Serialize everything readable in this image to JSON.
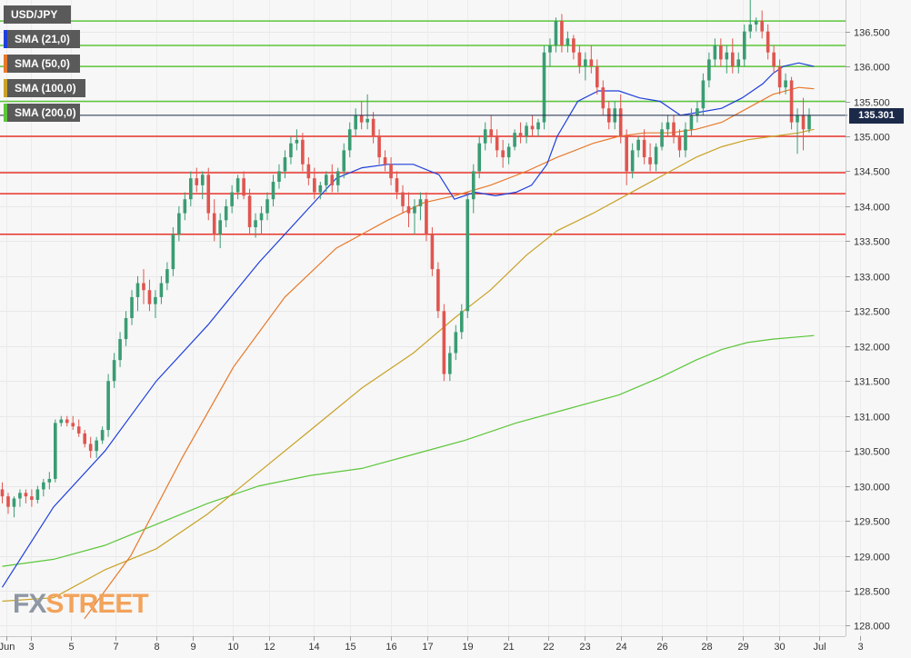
{
  "symbol": "USD/JPY",
  "legend": [
    {
      "label": "SMA (21,0)",
      "color": "#1f3fdc"
    },
    {
      "label": "SMA (50,0)",
      "color": "#e8792b"
    },
    {
      "label": "SMA (100,0)",
      "color": "#c9a227"
    },
    {
      "label": "SMA (200,0)",
      "color": "#5cc63a"
    }
  ],
  "current_price": "135.301",
  "logo": {
    "fx": "FX",
    "street": "STREET"
  },
  "colors": {
    "bull": "#3a9c73",
    "bear": "#e0554f",
    "support": "#e8342a",
    "resistance": "#5cc63a",
    "price_line": "#1c2a4a"
  },
  "chart_data": {
    "type": "candlestick",
    "ylim": [
      127.85,
      136.95
    ],
    "y_ticks": [
      "128.000",
      "128.500",
      "129.000",
      "129.500",
      "130.000",
      "130.500",
      "131.000",
      "131.500",
      "132.000",
      "132.500",
      "133.000",
      "133.500",
      "134.000",
      "134.500",
      "135.000",
      "135.500",
      "136.000",
      "136.500"
    ],
    "x_ticks": [
      {
        "label": "Jun",
        "index": 1
      },
      {
        "label": "3",
        "index": 7
      },
      {
        "label": "5",
        "index": 17
      },
      {
        "label": "7",
        "index": 28
      },
      {
        "label": "8",
        "index": 38
      },
      {
        "label": "9",
        "index": 47
      },
      {
        "label": "10",
        "index": 57
      },
      {
        "label": "12",
        "index": 66
      },
      {
        "label": "14",
        "index": 77
      },
      {
        "label": "15",
        "index": 86
      },
      {
        "label": "16",
        "index": 96
      },
      {
        "label": "17",
        "index": 105
      },
      {
        "label": "19",
        "index": 115
      },
      {
        "label": "21",
        "index": 125
      },
      {
        "label": "22",
        "index": 135
      },
      {
        "label": "23",
        "index": 144
      },
      {
        "label": "24",
        "index": 153
      },
      {
        "label": "26",
        "index": 163
      },
      {
        "label": "28",
        "index": 174
      },
      {
        "label": "29",
        "index": 183
      },
      {
        "label": "30",
        "index": 192
      },
      {
        "label": "Jul",
        "index": 202
      },
      {
        "label": "3",
        "index": 212
      }
    ],
    "horizontal_levels": {
      "resistance": [
        136.65,
        136.3,
        136.0,
        135.5
      ],
      "support": [
        135.0,
        134.48,
        134.18,
        133.6
      ]
    },
    "candles": [
      [
        129.95,
        130.05,
        129.75,
        129.85
      ],
      [
        129.85,
        129.9,
        129.6,
        129.7
      ],
      [
        129.7,
        129.85,
        129.55,
        129.82
      ],
      [
        129.82,
        129.95,
        129.7,
        129.9
      ],
      [
        129.9,
        129.95,
        129.75,
        129.85
      ],
      [
        129.85,
        129.95,
        129.7,
        129.8
      ],
      [
        129.8,
        130.0,
        129.75,
        129.95
      ],
      [
        129.95,
        130.1,
        129.85,
        130.05
      ],
      [
        130.05,
        130.2,
        129.95,
        130.1
      ],
      [
        130.1,
        130.95,
        130.05,
        130.9
      ],
      [
        130.9,
        131.0,
        130.85,
        130.95
      ],
      [
        130.95,
        131.0,
        130.85,
        130.9
      ],
      [
        130.9,
        131.0,
        130.8,
        130.85
      ],
      [
        130.85,
        130.95,
        130.7,
        130.75
      ],
      [
        130.75,
        130.8,
        130.55,
        130.6
      ],
      [
        130.6,
        130.7,
        130.4,
        130.5
      ],
      [
        130.5,
        130.7,
        130.4,
        130.65
      ],
      [
        130.65,
        130.85,
        130.6,
        130.8
      ],
      [
        130.8,
        131.6,
        130.7,
        131.5
      ],
      [
        131.5,
        131.9,
        131.4,
        131.8
      ],
      [
        131.8,
        132.2,
        131.7,
        132.1
      ],
      [
        132.1,
        132.5,
        132.0,
        132.4
      ],
      [
        132.4,
        132.8,
        132.3,
        132.7
      ],
      [
        132.7,
        133.0,
        132.5,
        132.9
      ],
      [
        132.9,
        133.1,
        132.6,
        132.8
      ],
      [
        132.8,
        132.95,
        132.5,
        132.6
      ],
      [
        132.6,
        132.8,
        132.4,
        132.7
      ],
      [
        132.7,
        133.0,
        132.6,
        132.9
      ],
      [
        132.9,
        133.2,
        132.8,
        133.1
      ],
      [
        133.1,
        133.7,
        133.0,
        133.6
      ],
      [
        133.6,
        134.0,
        133.5,
        133.9
      ],
      [
        133.9,
        134.2,
        133.8,
        134.1
      ],
      [
        134.1,
        134.5,
        134.0,
        134.4
      ],
      [
        134.4,
        134.55,
        134.2,
        134.3
      ],
      [
        134.3,
        134.5,
        134.1,
        134.45
      ],
      [
        134.45,
        134.55,
        133.8,
        133.9
      ],
      [
        133.9,
        134.1,
        133.5,
        133.6
      ],
      [
        133.6,
        133.9,
        133.4,
        133.8
      ],
      [
        133.8,
        134.1,
        133.7,
        134.0
      ],
      [
        134.0,
        134.3,
        133.9,
        134.2
      ],
      [
        134.2,
        134.45,
        134.1,
        134.4
      ],
      [
        134.4,
        134.5,
        134.1,
        134.15
      ],
      [
        134.15,
        134.25,
        133.6,
        133.7
      ],
      [
        133.7,
        133.9,
        133.55,
        133.8
      ],
      [
        133.8,
        134.0,
        133.6,
        133.9
      ],
      [
        133.9,
        134.2,
        133.8,
        134.1
      ],
      [
        134.1,
        134.45,
        134.0,
        134.35
      ],
      [
        134.35,
        134.6,
        134.25,
        134.5
      ],
      [
        134.5,
        134.8,
        134.4,
        134.7
      ],
      [
        134.7,
        135.0,
        134.6,
        134.9
      ],
      [
        134.9,
        135.1,
        134.8,
        134.95
      ],
      [
        134.95,
        135.05,
        134.5,
        134.6
      ],
      [
        134.6,
        134.7,
        134.3,
        134.4
      ],
      [
        134.4,
        134.55,
        134.1,
        134.2
      ],
      [
        134.2,
        134.35,
        134.1,
        134.3
      ],
      [
        134.3,
        134.5,
        134.2,
        134.45
      ],
      [
        134.45,
        134.6,
        134.2,
        134.3
      ],
      [
        134.3,
        134.55,
        134.2,
        134.5
      ],
      [
        134.5,
        134.9,
        134.4,
        134.8
      ],
      [
        134.8,
        135.2,
        134.7,
        135.1
      ],
      [
        135.1,
        135.4,
        135.0,
        135.3
      ],
      [
        135.3,
        135.5,
        135.1,
        135.2
      ],
      [
        135.2,
        135.6,
        135.1,
        135.25
      ],
      [
        135.25,
        135.35,
        134.9,
        135.0
      ],
      [
        135.0,
        135.1,
        134.6,
        134.7
      ],
      [
        134.7,
        134.8,
        134.5,
        134.6
      ],
      [
        134.6,
        134.7,
        134.3,
        134.4
      ],
      [
        134.4,
        134.5,
        134.1,
        134.2
      ],
      [
        134.2,
        134.3,
        133.9,
        134.0
      ],
      [
        134.0,
        134.2,
        133.7,
        133.9
      ],
      [
        133.9,
        134.1,
        133.6,
        134.0
      ],
      [
        134.0,
        134.2,
        133.8,
        134.1
      ],
      [
        134.1,
        134.2,
        133.5,
        133.6
      ],
      [
        133.6,
        133.7,
        133.0,
        133.1
      ],
      [
        133.1,
        133.2,
        132.4,
        132.5
      ],
      [
        132.5,
        132.6,
        131.5,
        131.6
      ],
      [
        131.6,
        132.0,
        131.5,
        131.9
      ],
      [
        131.9,
        132.3,
        131.8,
        132.2
      ],
      [
        132.2,
        132.6,
        132.1,
        132.5
      ],
      [
        132.5,
        134.2,
        132.4,
        134.1
      ],
      [
        134.1,
        134.6,
        133.9,
        134.5
      ],
      [
        134.5,
        135.0,
        134.4,
        134.9
      ],
      [
        134.9,
        135.2,
        134.8,
        135.1
      ],
      [
        135.1,
        135.3,
        134.9,
        135.0
      ],
      [
        135.0,
        135.1,
        134.7,
        134.8
      ],
      [
        134.8,
        134.95,
        134.55,
        134.7
      ],
      [
        134.7,
        134.9,
        134.6,
        134.85
      ],
      [
        134.85,
        135.1,
        134.8,
        135.05
      ],
      [
        135.05,
        135.2,
        134.9,
        135.0
      ],
      [
        135.0,
        135.2,
        134.9,
        135.15
      ],
      [
        135.15,
        135.3,
        135.0,
        135.1
      ],
      [
        135.1,
        135.25,
        135.0,
        135.2
      ],
      [
        135.2,
        136.3,
        135.1,
        136.2
      ],
      [
        136.2,
        136.4,
        136.0,
        136.3
      ],
      [
        136.3,
        136.7,
        136.2,
        136.65
      ],
      [
        136.65,
        136.75,
        136.2,
        136.3
      ],
      [
        136.3,
        136.5,
        136.2,
        136.4
      ],
      [
        136.4,
        136.45,
        136.1,
        136.2
      ],
      [
        136.2,
        136.3,
        135.9,
        136.0
      ],
      [
        136.0,
        136.2,
        135.8,
        136.1
      ],
      [
        136.1,
        136.3,
        135.9,
        136.0
      ],
      [
        136.0,
        136.1,
        135.6,
        135.7
      ],
      [
        135.7,
        135.8,
        135.3,
        135.4
      ],
      [
        135.4,
        135.5,
        135.1,
        135.2
      ],
      [
        135.2,
        135.5,
        135.1,
        135.4
      ],
      [
        135.4,
        135.6,
        134.9,
        135.0
      ],
      [
        135.0,
        135.1,
        134.3,
        134.5
      ],
      [
        134.5,
        134.9,
        134.4,
        134.8
      ],
      [
        134.8,
        135.0,
        134.7,
        134.95
      ],
      [
        134.95,
        135.1,
        134.6,
        134.7
      ],
      [
        134.7,
        134.9,
        134.5,
        134.6
      ],
      [
        134.6,
        134.9,
        134.5,
        134.85
      ],
      [
        134.85,
        135.2,
        134.8,
        135.1
      ],
      [
        135.1,
        135.3,
        135.0,
        135.2
      ],
      [
        135.2,
        135.3,
        134.9,
        135.0
      ],
      [
        135.0,
        135.1,
        134.7,
        134.8
      ],
      [
        134.8,
        135.2,
        134.7,
        135.1
      ],
      [
        135.1,
        135.4,
        135.0,
        135.3
      ],
      [
        135.3,
        135.5,
        135.2,
        135.4
      ],
      [
        135.4,
        135.9,
        135.3,
        135.8
      ],
      [
        135.8,
        136.2,
        135.7,
        136.1
      ],
      [
        136.1,
        136.4,
        136.0,
        136.3
      ],
      [
        136.3,
        136.4,
        136.0,
        136.1
      ],
      [
        136.1,
        136.3,
        135.9,
        136.2
      ],
      [
        136.2,
        136.4,
        135.9,
        136.0
      ],
      [
        136.0,
        136.2,
        135.9,
        136.1
      ],
      [
        136.1,
        136.6,
        136.0,
        136.5
      ],
      [
        136.5,
        136.95,
        136.4,
        136.6
      ],
      [
        136.6,
        136.7,
        136.5,
        136.65
      ],
      [
        136.65,
        136.8,
        136.4,
        136.5
      ],
      [
        136.5,
        136.6,
        136.1,
        136.2
      ],
      [
        136.2,
        136.3,
        135.9,
        136.0
      ],
      [
        136.0,
        136.1,
        135.6,
        135.7
      ],
      [
        135.7,
        135.9,
        135.6,
        135.8
      ],
      [
        135.8,
        135.85,
        135.1,
        135.2
      ],
      [
        135.2,
        135.4,
        134.75,
        135.3
      ],
      [
        135.3,
        135.55,
        134.8,
        135.1
      ],
      [
        135.1,
        135.4,
        135.05,
        135.3
      ]
    ],
    "series": [
      {
        "name": "SMA (21,0)",
        "color": "#1f3fdc",
        "points": [
          [
            0,
            128.55
          ],
          [
            10,
            129.7
          ],
          [
            20,
            130.5
          ],
          [
            30,
            131.5
          ],
          [
            40,
            132.3
          ],
          [
            50,
            133.2
          ],
          [
            60,
            134.0
          ],
          [
            65,
            134.4
          ],
          [
            70,
            134.55
          ],
          [
            75,
            134.6
          ],
          [
            80,
            134.6
          ],
          [
            85,
            134.45
          ],
          [
            88,
            134.1
          ],
          [
            92,
            134.2
          ],
          [
            96,
            134.15
          ],
          [
            100,
            134.2
          ],
          [
            103,
            134.3
          ],
          [
            106,
            134.6
          ],
          [
            108,
            135.0
          ],
          [
            112,
            135.5
          ],
          [
            116,
            135.65
          ],
          [
            120,
            135.65
          ],
          [
            124,
            135.55
          ],
          [
            128,
            135.5
          ],
          [
            132,
            135.3
          ],
          [
            136,
            135.35
          ],
          [
            140,
            135.4
          ],
          [
            144,
            135.55
          ],
          [
            148,
            135.75
          ],
          [
            150,
            135.9
          ],
          [
            152,
            136.0
          ],
          [
            155,
            136.05
          ],
          [
            158,
            136.0
          ]
        ]
      },
      {
        "name": "SMA (50,0)",
        "color": "#e8792b",
        "points": [
          [
            16,
            128.1
          ],
          [
            25,
            129.0
          ],
          [
            35,
            130.4
          ],
          [
            45,
            131.7
          ],
          [
            55,
            132.7
          ],
          [
            65,
            133.4
          ],
          [
            75,
            133.8
          ],
          [
            82,
            134.05
          ],
          [
            88,
            134.15
          ],
          [
            95,
            134.3
          ],
          [
            102,
            134.5
          ],
          [
            108,
            134.7
          ],
          [
            115,
            134.9
          ],
          [
            120,
            135.0
          ],
          [
            125,
            135.05
          ],
          [
            130,
            135.05
          ],
          [
            135,
            135.1
          ],
          [
            140,
            135.2
          ],
          [
            145,
            135.4
          ],
          [
            150,
            135.6
          ],
          [
            155,
            135.7
          ],
          [
            158,
            135.68
          ]
        ]
      },
      {
        "name": "SMA (100,0)",
        "color": "#c9a227",
        "points": [
          [
            0,
            128.35
          ],
          [
            10,
            128.4
          ],
          [
            20,
            128.8
          ],
          [
            30,
            129.1
          ],
          [
            40,
            129.6
          ],
          [
            50,
            130.2
          ],
          [
            60,
            130.8
          ],
          [
            70,
            131.4
          ],
          [
            80,
            131.9
          ],
          [
            88,
            132.4
          ],
          [
            95,
            132.8
          ],
          [
            102,
            133.3
          ],
          [
            108,
            133.65
          ],
          [
            115,
            133.9
          ],
          [
            120,
            134.1
          ],
          [
            125,
            134.3
          ],
          [
            130,
            134.5
          ],
          [
            135,
            134.7
          ],
          [
            140,
            134.85
          ],
          [
            145,
            134.95
          ],
          [
            150,
            135.0
          ],
          [
            155,
            135.05
          ],
          [
            158,
            135.1
          ]
        ]
      },
      {
        "name": "SMA (200,0)",
        "color": "#5cc63a",
        "points": [
          [
            0,
            128.85
          ],
          [
            10,
            128.95
          ],
          [
            20,
            129.15
          ],
          [
            30,
            129.45
          ],
          [
            40,
            129.75
          ],
          [
            50,
            130.0
          ],
          [
            60,
            130.15
          ],
          [
            70,
            130.25
          ],
          [
            80,
            130.45
          ],
          [
            90,
            130.65
          ],
          [
            100,
            130.9
          ],
          [
            110,
            131.1
          ],
          [
            120,
            131.3
          ],
          [
            128,
            131.55
          ],
          [
            135,
            131.8
          ],
          [
            140,
            131.95
          ],
          [
            145,
            132.05
          ],
          [
            150,
            132.1
          ],
          [
            158,
            132.15
          ]
        ]
      }
    ]
  }
}
